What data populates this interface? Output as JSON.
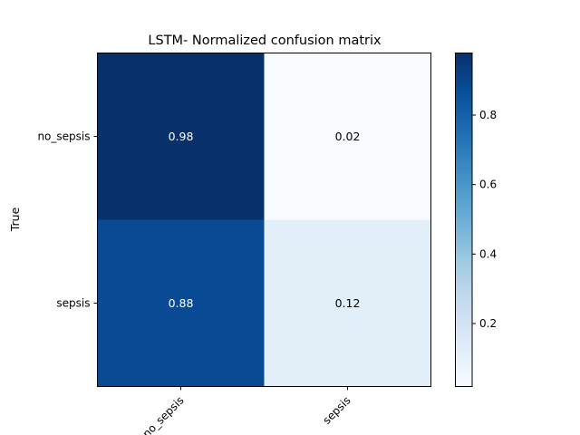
{
  "chart_data": {
    "type": "heatmap",
    "title": "LSTM- Normalized confusion matrix",
    "ylabel": "True",
    "xlabel": "",
    "x_categories": [
      "no_sepsis",
      "sepsis"
    ],
    "y_categories": [
      "no_sepsis",
      "sepsis"
    ],
    "values": [
      [
        0.98,
        0.02
      ],
      [
        0.88,
        0.12
      ]
    ],
    "value_labels": [
      [
        "0.98",
        "0.02"
      ],
      [
        "0.88",
        "0.12"
      ]
    ],
    "colormap": "Blues",
    "color_range": [
      0.02,
      0.98
    ],
    "colorbar_ticks": [
      0.2,
      0.4,
      0.6,
      0.8
    ],
    "colorbar_tick_labels": [
      "0.2",
      "0.4",
      "0.6",
      "0.8"
    ],
    "grid": false,
    "text_colors": {
      "dark_cell": "#ffffff",
      "light_cell": "#000000"
    }
  }
}
